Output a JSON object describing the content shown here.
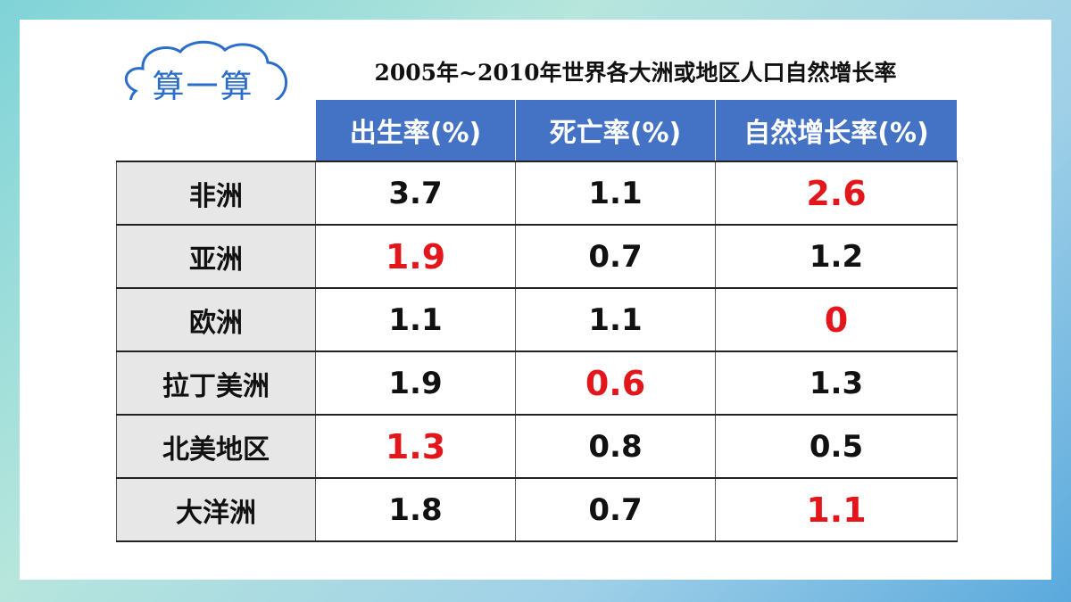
{
  "bubble_label": "算一算",
  "title": "2005年~2010年世界各大洲或地区人口自然增长率",
  "headers": [
    "出生率(%)",
    "死亡率(%)",
    "自然增长率(%)"
  ],
  "rows": [
    {
      "region": "非洲",
      "birth": "3.7",
      "death": "1.1",
      "growth": "2.6",
      "highlight": [
        "growth"
      ]
    },
    {
      "region": "亚洲",
      "birth": "1.9",
      "death": "0.7",
      "growth": "1.2",
      "highlight": [
        "birth"
      ]
    },
    {
      "region": "欧洲",
      "birth": "1.1",
      "death": "1.1",
      "growth": "0",
      "highlight": [
        "growth"
      ]
    },
    {
      "region": "拉丁美洲",
      "birth": "1.9",
      "death": "0.6",
      "growth": "1.3",
      "highlight": [
        "death"
      ]
    },
    {
      "region": "北美地区",
      "birth": "1.3",
      "death": "0.8",
      "growth": "0.5",
      "highlight": [
        "birth"
      ]
    },
    {
      "region": "大洋洲",
      "birth": "1.8",
      "death": "0.7",
      "growth": "1.1",
      "highlight": [
        "growth"
      ]
    }
  ],
  "colors": {
    "header_bg": "#4472c4",
    "highlight": "#e3161b",
    "region_bg": "#e7e7e7",
    "bubble": "#2b6ec9"
  }
}
